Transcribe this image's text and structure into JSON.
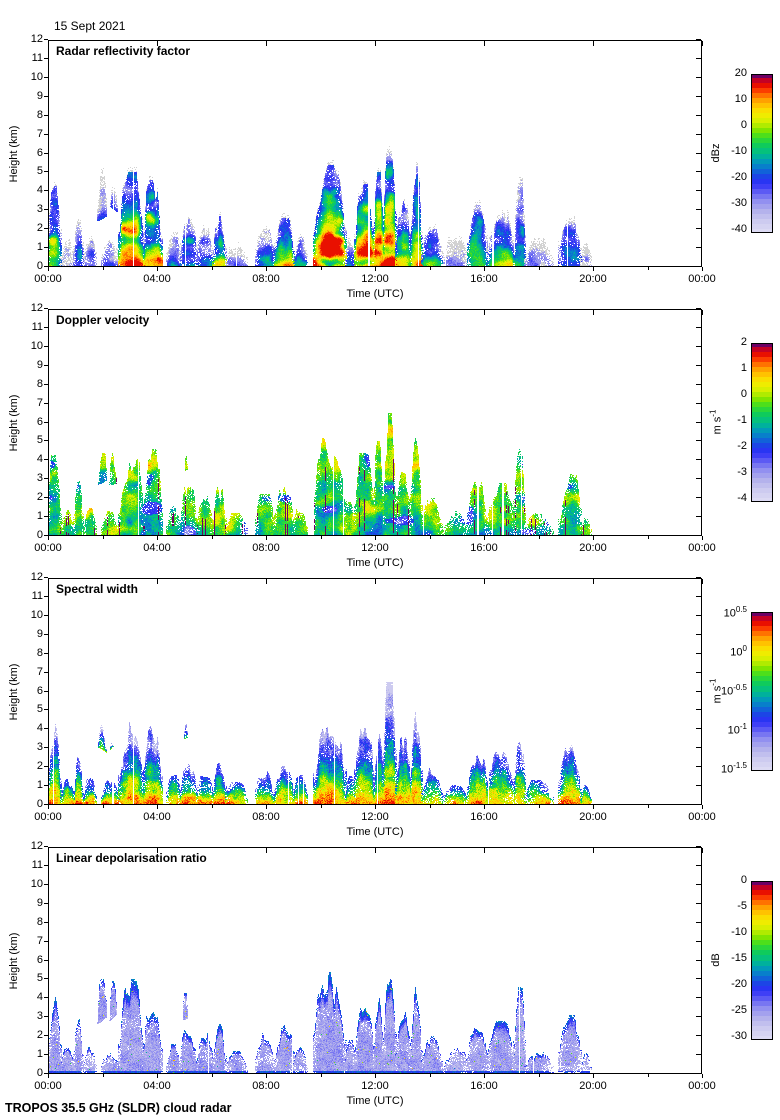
{
  "page": {
    "date_label": "15 Sept 2021",
    "footer": "TROPOS 35.5 GHz (SLDR) cloud radar",
    "background_color": "#ffffff"
  },
  "chart_data": {
    "type": "heatmap",
    "figure_date": "15 Sept 2021",
    "instrument": "TROPOS 35.5 GHz (SLDR) cloud radar",
    "axes": {
      "xlabel": "Time (UTC)",
      "ylabel": "Height (km)",
      "x_range_hours": [
        0,
        24
      ],
      "y_range_km": [
        0,
        12
      ],
      "x_tick_hours": [
        0,
        4,
        8,
        12,
        16,
        20,
        24
      ],
      "x_tick_labels": [
        "00:00",
        "04:00",
        "08:00",
        "12:00",
        "16:00",
        "20:00",
        "00:00"
      ],
      "x_minor_tick_hours": [
        2,
        6,
        10,
        14,
        18,
        22
      ],
      "y_tick_km": [
        0,
        1,
        2,
        3,
        4,
        5,
        6,
        7,
        8,
        9,
        10,
        11,
        12
      ],
      "y_tick_labels": [
        "0",
        "1",
        "2",
        "3",
        "4",
        "5",
        "6",
        "7",
        "8",
        "9",
        "10",
        "11",
        "12"
      ],
      "grid": false
    },
    "colormap_stops": [
      [
        0.0,
        "#dcdaf4"
      ],
      [
        0.06,
        "#cfcdf0"
      ],
      [
        0.13,
        "#b4b2ec"
      ],
      [
        0.2,
        "#8e8cf0"
      ],
      [
        0.26,
        "#5a58f4"
      ],
      [
        0.31,
        "#2e2ef8"
      ],
      [
        0.36,
        "#1a48e4"
      ],
      [
        0.41,
        "#0a78d0"
      ],
      [
        0.46,
        "#00a0b4"
      ],
      [
        0.5,
        "#00bc8c"
      ],
      [
        0.55,
        "#10cc5a"
      ],
      [
        0.6,
        "#38dc28"
      ],
      [
        0.64,
        "#78e400"
      ],
      [
        0.68,
        "#b4ec00"
      ],
      [
        0.72,
        "#e4f000"
      ],
      [
        0.76,
        "#f8e800"
      ],
      [
        0.8,
        "#ffc800"
      ],
      [
        0.84,
        "#ffa000"
      ],
      [
        0.88,
        "#ff6400"
      ],
      [
        0.91,
        "#fa3200"
      ],
      [
        0.94,
        "#e60a00"
      ],
      [
        0.97,
        "#c00028"
      ],
      [
        1.0,
        "#6e0064"
      ]
    ],
    "weak_echo_color": "#d2d2d2",
    "panels": [
      {
        "title": "Radar reflectivity factor",
        "field": "reflectivity",
        "seed": 11,
        "colorbar": {
          "unit": "dBz",
          "tick_labels": [
            "20",
            "10",
            "0",
            "-10",
            "-20",
            "-30",
            "-40"
          ],
          "max": 20,
          "min": -40
        }
      },
      {
        "title": "Doppler velocity",
        "field": "velocity",
        "seed": 23,
        "colorbar": {
          "unit": "m s^-1",
          "tick_labels": [
            "2",
            "1",
            "0",
            "-1",
            "-2",
            "-3",
            "-4"
          ],
          "max": 2,
          "min": -4
        }
      },
      {
        "title": "Spectral width",
        "field": "spectral_width",
        "seed": 37,
        "colorbar": {
          "unit": "m s^-1",
          "tick_labels": [
            "10^0.5",
            "10^0",
            "10^-0.5",
            "10^-1",
            "10^-1.5"
          ],
          "max_log10": 0.5,
          "min_log10": -1.5
        }
      },
      {
        "title": "Linear depolarisation ratio",
        "field": "ldr",
        "seed": 49,
        "colorbar": {
          "unit": "dB",
          "tick_labels": [
            "0",
            "-5",
            "-10",
            "-15",
            "-20",
            "-25",
            "-30"
          ],
          "max": 0,
          "min": -30
        }
      }
    ],
    "cloud_events": [
      {
        "t0": 0.0,
        "t1": 0.45,
        "top_km": 4.3,
        "intensity": 0.72
      },
      {
        "t0": 0.45,
        "t1": 0.95,
        "top_km": 1.4,
        "intensity": 0.3
      },
      {
        "t0": 0.95,
        "t1": 1.25,
        "top_km": 2.9,
        "intensity": 0.5
      },
      {
        "t0": 1.3,
        "t1": 1.75,
        "top_km": 1.5,
        "intensity": 0.32
      },
      {
        "t0": 1.75,
        "t1": 2.2,
        "top_km": 5.0,
        "base_km": 2.7,
        "intensity": 0.27
      },
      {
        "t0": 2.2,
        "t1": 2.6,
        "top_km": 4.9,
        "base_km": 2.9,
        "intensity": 0.27
      },
      {
        "t0": 1.95,
        "t1": 2.6,
        "top_km": 1.3,
        "intensity": 0.3
      },
      {
        "t0": 2.6,
        "t1": 3.5,
        "top_km": 5.0,
        "intensity": 0.95
      },
      {
        "t0": 3.5,
        "t1": 4.15,
        "top_km": 4.6,
        "intensity": 0.85
      },
      {
        "t0": 4.35,
        "t1": 4.85,
        "top_km": 1.6,
        "intensity": 0.35
      },
      {
        "t0": 4.85,
        "t1": 5.45,
        "top_km": 2.6,
        "intensity": 0.55
      },
      {
        "t0": 4.9,
        "t1": 5.15,
        "top_km": 4.3,
        "base_km": 3.3,
        "intensity": 0.25
      },
      {
        "t0": 5.45,
        "t1": 6.05,
        "top_km": 2.4,
        "intensity": 0.5
      },
      {
        "t0": 6.05,
        "t1": 6.5,
        "top_km": 2.7,
        "intensity": 0.8
      },
      {
        "t0": 6.5,
        "t1": 7.3,
        "top_km": 1.2,
        "intensity": 0.22
      },
      {
        "t0": 7.6,
        "t1": 8.3,
        "top_km": 2.2,
        "intensity": 0.45
      },
      {
        "t0": 8.3,
        "t1": 9.0,
        "top_km": 2.6,
        "intensity": 0.6
      },
      {
        "t0": 9.0,
        "t1": 9.5,
        "top_km": 1.6,
        "intensity": 0.35
      },
      {
        "t0": 9.75,
        "t1": 10.9,
        "top_km": 5.4,
        "intensity": 1.0
      },
      {
        "t0": 10.9,
        "t1": 11.25,
        "top_km": 1.8,
        "intensity": 0.45
      },
      {
        "t0": 11.25,
        "t1": 11.95,
        "top_km": 4.4,
        "intensity": 0.95
      },
      {
        "t0": 11.95,
        "t1": 12.3,
        "top_km": 5.0,
        "intensity": 0.9
      },
      {
        "t0": 12.3,
        "t1": 12.75,
        "top_km": 6.5,
        "intensity": 0.85
      },
      {
        "t0": 12.75,
        "t1": 13.3,
        "top_km": 3.6,
        "intensity": 0.7
      },
      {
        "t0": 13.3,
        "t1": 13.7,
        "top_km": 5.4,
        "intensity": 0.75
      },
      {
        "t0": 13.7,
        "t1": 14.45,
        "top_km": 2.0,
        "intensity": 0.45
      },
      {
        "t0": 14.5,
        "t1": 15.4,
        "top_km": 1.4,
        "intensity": 0.18
      },
      {
        "t0": 15.4,
        "t1": 16.1,
        "top_km": 3.3,
        "intensity": 0.65
      },
      {
        "t0": 16.1,
        "t1": 17.1,
        "top_km": 2.8,
        "intensity": 0.55
      },
      {
        "t0": 17.1,
        "t1": 17.5,
        "top_km": 4.6,
        "intensity": 0.4
      },
      {
        "t0": 17.5,
        "t1": 18.5,
        "top_km": 1.3,
        "intensity": 0.2
      },
      {
        "t0": 18.75,
        "t1": 19.55,
        "top_km": 3.3,
        "intensity": 0.55
      },
      {
        "t0": 19.55,
        "t1": 19.9,
        "top_km": 1.1,
        "intensity": 0.22
      }
    ]
  }
}
